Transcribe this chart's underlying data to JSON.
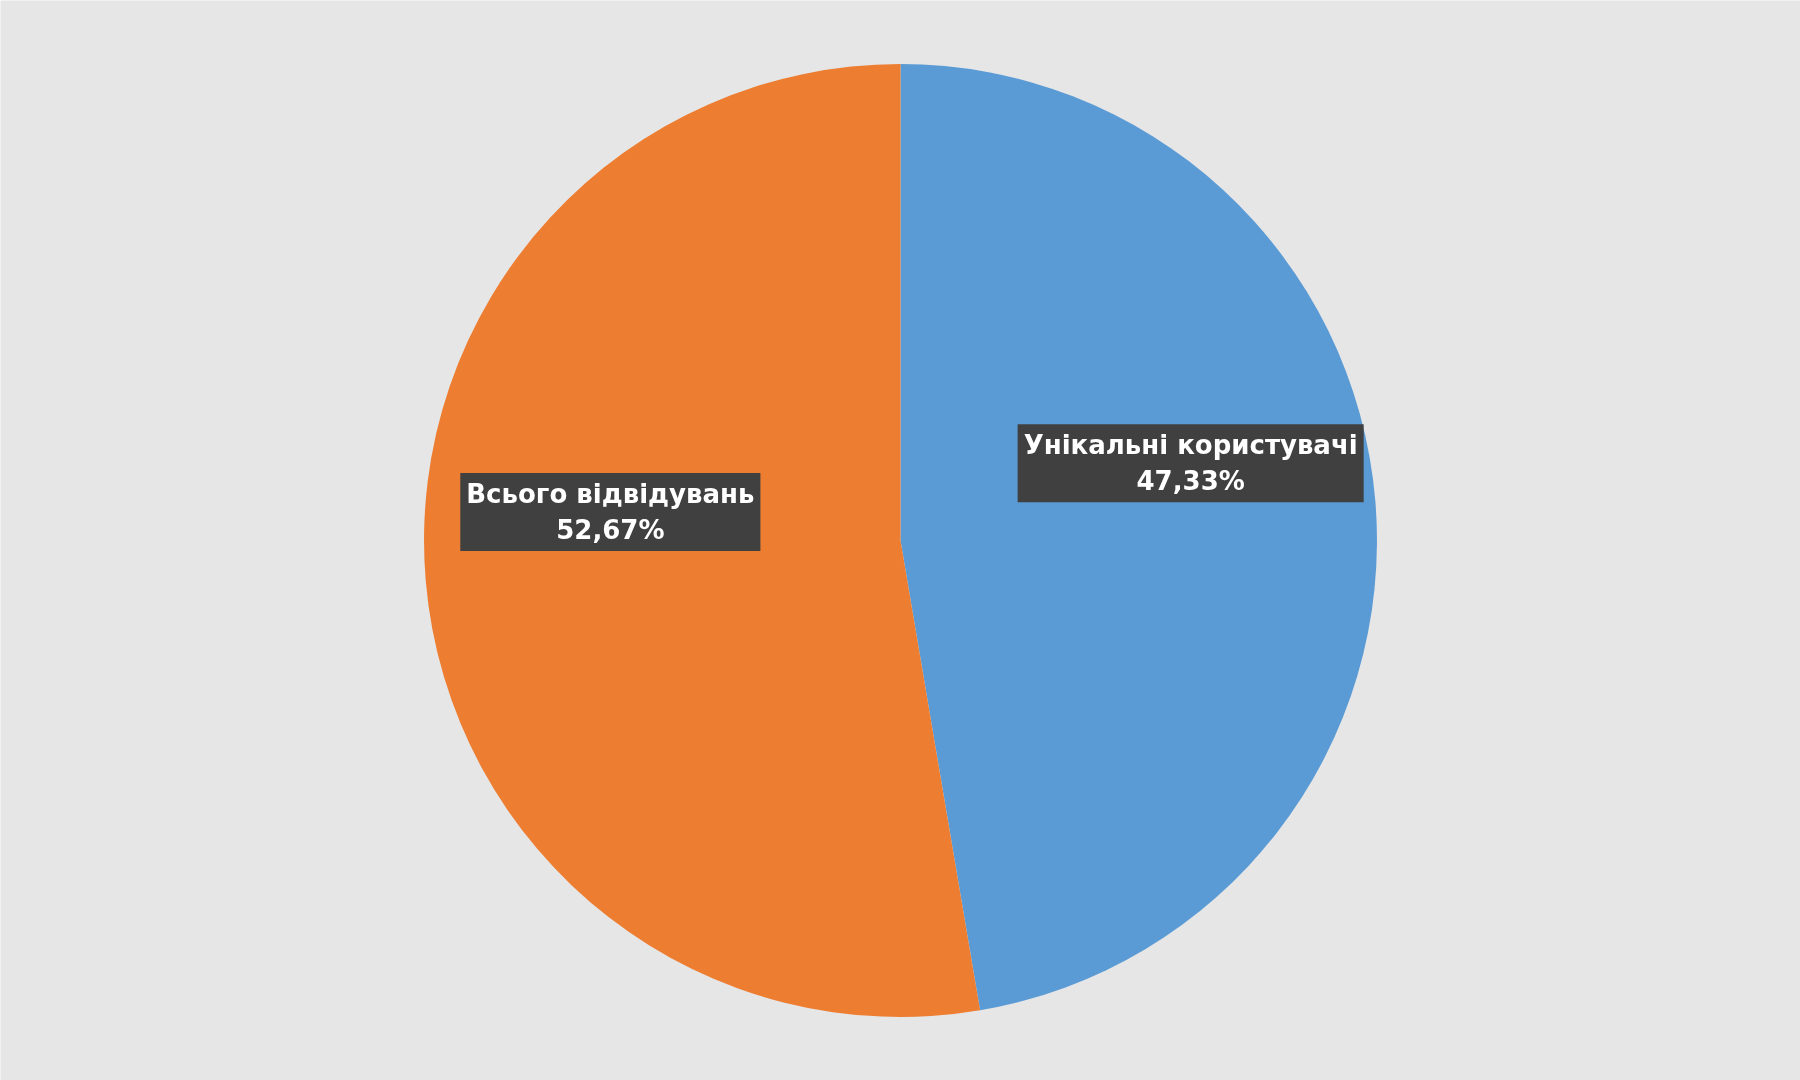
{
  "chart_data": {
    "type": "pie",
    "categories": [
      "Унікальні користувачі",
      "Всього відвідувань"
    ],
    "values": [
      47.33,
      52.67
    ],
    "colors": [
      "#5b9bd5",
      "#ed7d31"
    ],
    "value_labels": [
      "47,33%",
      "52,67%"
    ]
  }
}
